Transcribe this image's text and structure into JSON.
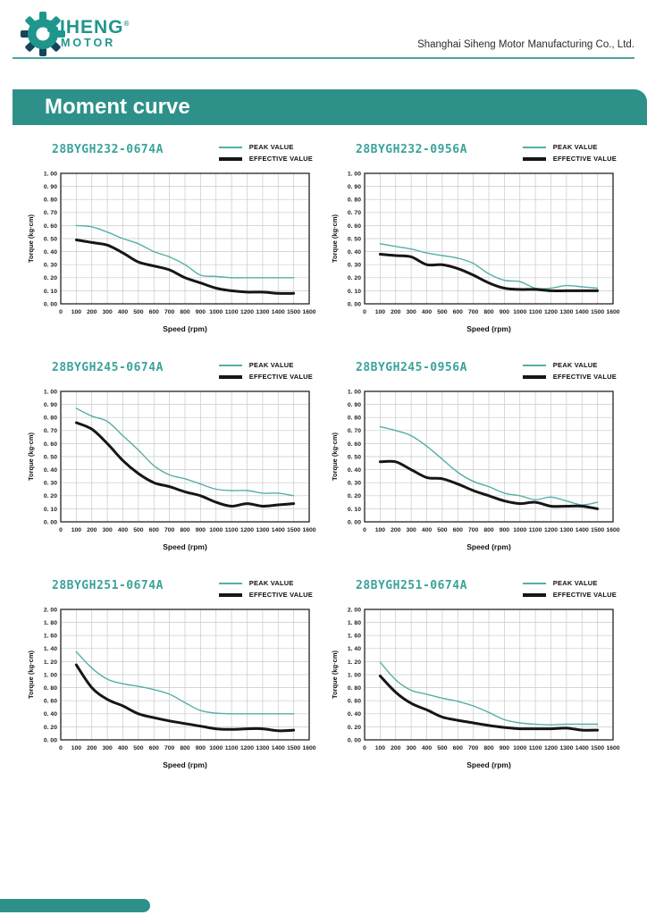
{
  "header": {
    "logo": {
      "brand_line1": "SIHENG",
      "brand_line2": "MOTOR",
      "registered_mark": "®",
      "icon": "gear-icon"
    },
    "company_name": "Shanghai Siheng Motor Manufacturing Co., Ltd."
  },
  "page_title": "Moment curve",
  "legend": {
    "peak_label": "PEAK VALUE",
    "effective_label": "EFFECTIVE VALUE"
  },
  "colors": {
    "accent_teal": "#2d918a",
    "title_teal": "#3aa39b",
    "peak_line": "#56aea8",
    "effective_line": "#161616",
    "grid": "#c9c9c9",
    "axis": "#222222"
  },
  "chart_data": [
    {
      "type": "line",
      "title": "28BYGH232-0674A",
      "xlabel": "Speed (rpm)",
      "ylabel": "Torque (kg·cm)",
      "xlim": [
        0,
        1600
      ],
      "x_ticks": [
        0,
        100,
        200,
        300,
        400,
        500,
        600,
        700,
        800,
        900,
        1000,
        1100,
        1200,
        1300,
        1400,
        1500,
        1600
      ],
      "ylim": [
        0,
        1.0
      ],
      "y_ticks": [
        "0. 00",
        "0. 10",
        "0. 20",
        "0. 30",
        "0. 40",
        "0. 50",
        "0. 60",
        "0. 70",
        "0. 80",
        "0. 90",
        "1. 00"
      ],
      "grid": true,
      "legend_position": "top-right",
      "x": [
        100,
        200,
        300,
        400,
        500,
        600,
        700,
        800,
        900,
        1000,
        1100,
        1200,
        1300,
        1400,
        1500
      ],
      "series": [
        {
          "name": "PEAK VALUE",
          "color": "#56aea8",
          "values": [
            0.6,
            0.59,
            0.55,
            0.5,
            0.46,
            0.4,
            0.36,
            0.3,
            0.22,
            0.21,
            0.2,
            0.2,
            0.2,
            0.2,
            0.2
          ]
        },
        {
          "name": "EFFECTIVE VALUE",
          "color": "#161616",
          "values": [
            0.49,
            0.47,
            0.45,
            0.39,
            0.32,
            0.29,
            0.26,
            0.2,
            0.16,
            0.12,
            0.1,
            0.09,
            0.09,
            0.08,
            0.08
          ]
        }
      ]
    },
    {
      "type": "line",
      "title": "28BYGH232-0956A",
      "xlabel": "Speed (rpm)",
      "ylabel": "Torque (kg·cm)",
      "xlim": [
        0,
        1600
      ],
      "x_ticks": [
        0,
        100,
        200,
        300,
        400,
        500,
        600,
        700,
        800,
        900,
        1000,
        1100,
        1200,
        1300,
        1400,
        1500,
        1600
      ],
      "ylim": [
        0,
        1.0
      ],
      "y_ticks": [
        "0. 00",
        "0. 10",
        "0. 20",
        "0. 30",
        "0. 40",
        "0. 50",
        "0. 60",
        "0. 70",
        "0. 80",
        "0. 90",
        "1. 00"
      ],
      "grid": true,
      "legend_position": "top-right",
      "x": [
        100,
        200,
        300,
        400,
        500,
        600,
        700,
        800,
        900,
        1000,
        1100,
        1200,
        1300,
        1400,
        1500
      ],
      "series": [
        {
          "name": "PEAK VALUE",
          "color": "#56aea8",
          "values": [
            0.46,
            0.44,
            0.42,
            0.39,
            0.37,
            0.35,
            0.31,
            0.23,
            0.18,
            0.17,
            0.12,
            0.12,
            0.14,
            0.13,
            0.12
          ]
        },
        {
          "name": "EFFECTIVE VALUE",
          "color": "#161616",
          "values": [
            0.38,
            0.37,
            0.36,
            0.3,
            0.3,
            0.27,
            0.22,
            0.16,
            0.12,
            0.11,
            0.11,
            0.1,
            0.1,
            0.1,
            0.1
          ]
        }
      ]
    },
    {
      "type": "line",
      "title": "28BYGH245-0674A",
      "xlabel": "Speed (rpm)",
      "ylabel": "Torque (kg·cm)",
      "xlim": [
        0,
        1600
      ],
      "x_ticks": [
        0,
        100,
        200,
        300,
        400,
        500,
        600,
        700,
        800,
        900,
        1000,
        1100,
        1200,
        1300,
        1400,
        1500,
        1600
      ],
      "ylim": [
        0,
        1.0
      ],
      "y_ticks": [
        "0. 00",
        "0. 10",
        "0. 20",
        "0. 30",
        "0. 40",
        "0. 50",
        "0. 60",
        "0. 70",
        "0. 80",
        "0. 90",
        "1. 00"
      ],
      "grid": true,
      "legend_position": "top-right",
      "x": [
        100,
        200,
        300,
        400,
        500,
        600,
        700,
        800,
        900,
        1000,
        1100,
        1200,
        1300,
        1400,
        1500
      ],
      "series": [
        {
          "name": "PEAK VALUE",
          "color": "#56aea8",
          "values": [
            0.87,
            0.81,
            0.77,
            0.66,
            0.55,
            0.43,
            0.36,
            0.33,
            0.29,
            0.25,
            0.24,
            0.24,
            0.22,
            0.22,
            0.2
          ]
        },
        {
          "name": "EFFECTIVE VALUE",
          "color": "#161616",
          "values": [
            0.76,
            0.71,
            0.6,
            0.47,
            0.37,
            0.3,
            0.27,
            0.23,
            0.2,
            0.15,
            0.12,
            0.14,
            0.12,
            0.13,
            0.14
          ]
        }
      ]
    },
    {
      "type": "line",
      "title": "28BYGH245-0956A",
      "xlabel": "Speed (rpm)",
      "ylabel": "Torque (kg·cm)",
      "xlim": [
        0,
        1600
      ],
      "x_ticks": [
        0,
        100,
        200,
        300,
        400,
        500,
        600,
        700,
        800,
        900,
        1000,
        1100,
        1200,
        1300,
        1400,
        1500,
        1600
      ],
      "ylim": [
        0,
        1.0
      ],
      "y_ticks": [
        "0. 00",
        "0. 10",
        "0. 20",
        "0. 30",
        "0. 40",
        "0. 50",
        "0. 60",
        "0. 70",
        "0. 80",
        "0. 90",
        "1. 00"
      ],
      "grid": true,
      "legend_position": "top-right",
      "x": [
        100,
        200,
        300,
        400,
        500,
        600,
        700,
        800,
        900,
        1000,
        1100,
        1200,
        1300,
        1400,
        1500
      ],
      "series": [
        {
          "name": "PEAK VALUE",
          "color": "#56aea8",
          "values": [
            0.73,
            0.7,
            0.66,
            0.58,
            0.48,
            0.38,
            0.31,
            0.27,
            0.22,
            0.2,
            0.17,
            0.19,
            0.16,
            0.13,
            0.15
          ]
        },
        {
          "name": "EFFECTIVE VALUE",
          "color": "#161616",
          "values": [
            0.46,
            0.46,
            0.4,
            0.34,
            0.33,
            0.29,
            0.24,
            0.2,
            0.16,
            0.14,
            0.15,
            0.12,
            0.12,
            0.12,
            0.1
          ]
        }
      ]
    },
    {
      "type": "line",
      "title": "28BYGH251-0674A",
      "xlabel": "Speed (rpm)",
      "ylabel": "Torque (kg·cm)",
      "xlim": [
        0,
        1600
      ],
      "x_ticks": [
        0,
        100,
        200,
        300,
        400,
        500,
        600,
        700,
        800,
        900,
        1000,
        1100,
        1200,
        1300,
        1400,
        1500,
        1600
      ],
      "ylim": [
        0,
        2.0
      ],
      "y_ticks": [
        "0. 00",
        "0. 20",
        "0. 40",
        "0. 60",
        "0. 80",
        "1. 00",
        "1. 20",
        "1. 40",
        "1. 60",
        "1. 80",
        "2. 00"
      ],
      "grid": true,
      "legend_position": "top-right",
      "x": [
        100,
        200,
        300,
        400,
        500,
        600,
        700,
        800,
        900,
        1000,
        1100,
        1200,
        1300,
        1400,
        1500
      ],
      "series": [
        {
          "name": "PEAK VALUE",
          "color": "#56aea8",
          "values": [
            1.35,
            1.1,
            0.93,
            0.86,
            0.82,
            0.77,
            0.7,
            0.57,
            0.45,
            0.41,
            0.4,
            0.4,
            0.4,
            0.4,
            0.4
          ]
        },
        {
          "name": "EFFECTIVE VALUE",
          "color": "#161616",
          "values": [
            1.15,
            0.8,
            0.62,
            0.52,
            0.4,
            0.34,
            0.29,
            0.25,
            0.21,
            0.17,
            0.16,
            0.17,
            0.17,
            0.14,
            0.15
          ]
        }
      ]
    },
    {
      "type": "line",
      "title": "28BYGH251-0674A",
      "xlabel": "Speed (rpm)",
      "ylabel": "Torque (kg·cm)",
      "xlim": [
        0,
        1600
      ],
      "x_ticks": [
        0,
        100,
        200,
        300,
        400,
        500,
        600,
        700,
        800,
        900,
        1000,
        1100,
        1200,
        1300,
        1400,
        1500,
        1600
      ],
      "ylim": [
        0,
        2.0
      ],
      "y_ticks": [
        "0. 00",
        "0. 20",
        "0. 40",
        "0. 60",
        "0. 80",
        "1. 00",
        "1. 20",
        "1. 40",
        "1. 60",
        "1. 80",
        "2. 00"
      ],
      "grid": true,
      "legend_position": "top-right",
      "x": [
        100,
        200,
        300,
        400,
        500,
        600,
        700,
        800,
        900,
        1000,
        1100,
        1200,
        1300,
        1400,
        1500
      ],
      "series": [
        {
          "name": "PEAK VALUE",
          "color": "#56aea8",
          "values": [
            1.19,
            0.92,
            0.76,
            0.7,
            0.64,
            0.59,
            0.52,
            0.42,
            0.31,
            0.26,
            0.24,
            0.23,
            0.24,
            0.24,
            0.24
          ]
        },
        {
          "name": "EFFECTIVE VALUE",
          "color": "#161616",
          "values": [
            0.98,
            0.73,
            0.56,
            0.46,
            0.35,
            0.3,
            0.26,
            0.22,
            0.19,
            0.17,
            0.17,
            0.17,
            0.18,
            0.15,
            0.15
          ]
        }
      ]
    }
  ]
}
